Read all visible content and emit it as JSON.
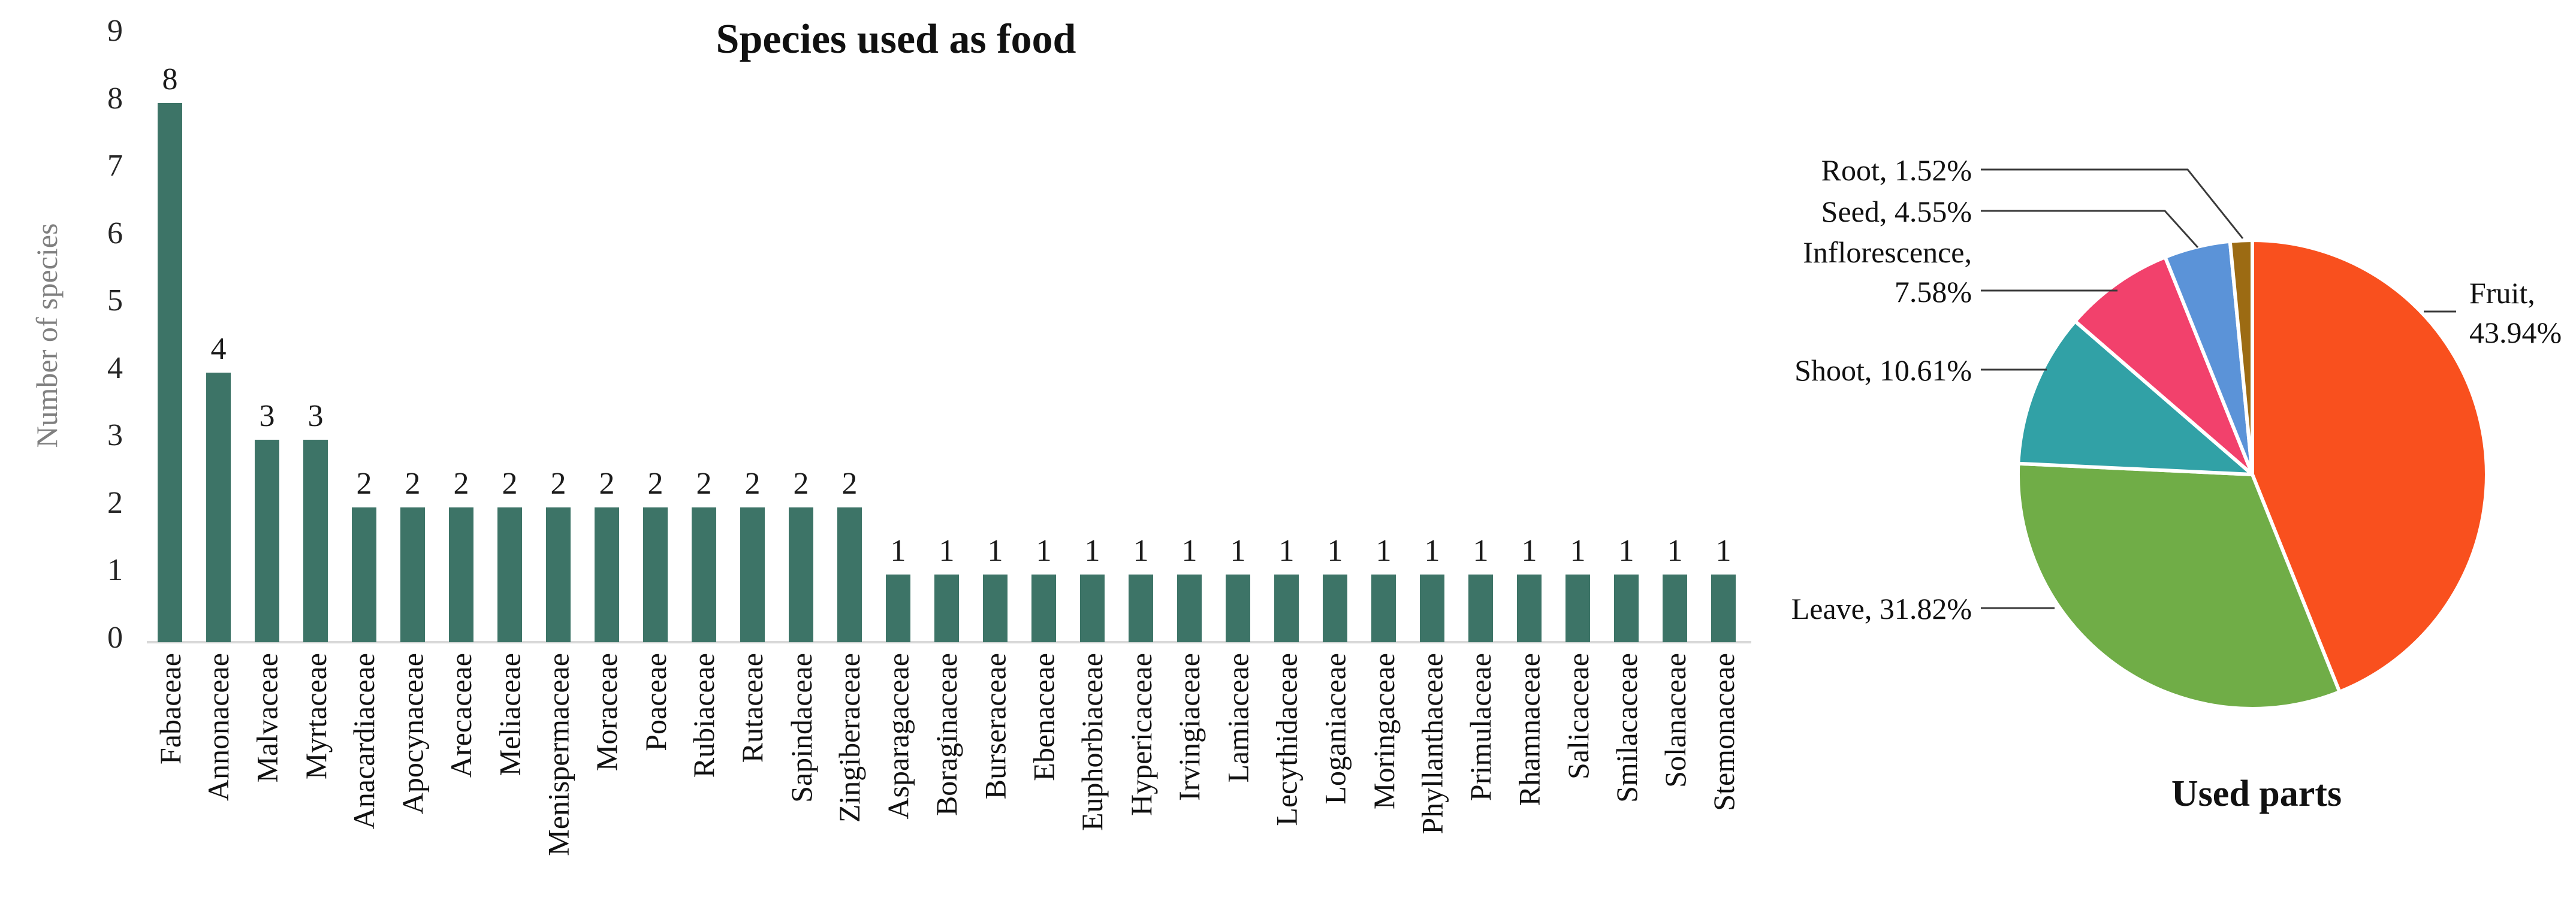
{
  "chart_data": [
    {
      "type": "bar",
      "title": "Species used as food",
      "xlabel": "",
      "ylabel": "Number of species",
      "ylim": [
        0,
        9
      ],
      "ytick_step": 1,
      "grid": false,
      "legend": null,
      "bar_color": "#3D7467",
      "value_labels_shown": true,
      "categories": [
        "Fabaceae",
        "Annonaceae",
        "Malvaceae",
        "Myrtaceae",
        "Anacardiaceae",
        "Apocynaceae",
        "Arecaceae",
        "Meliaceae",
        "Menispermaceae",
        "Moraceae",
        "Poaceae",
        "Rubiaceae",
        "Rutaceae",
        "Sapindaceae",
        "Zingiberaceae",
        "Asparagaceae",
        "Boraginaceae",
        "Burseraceae",
        "Ebenaceae",
        "Euphorbiaceae",
        "Hypericaceae",
        "Irvingiaceae",
        "Lamiaceae",
        "Lecythidaceae",
        "Loganiaceae",
        "Moringaceae",
        "Phyllanthaceae",
        "Primulaceae",
        "Rhamnaceae",
        "Salicaceae",
        "Smilacaceae",
        "Solanaceae",
        "Stemonaceae"
      ],
      "values": [
        8,
        4,
        3,
        3,
        2,
        2,
        2,
        2,
        2,
        2,
        2,
        2,
        2,
        2,
        2,
        1,
        1,
        1,
        1,
        1,
        1,
        1,
        1,
        1,
        1,
        1,
        1,
        1,
        1,
        1,
        1,
        1,
        1
      ]
    },
    {
      "type": "pie",
      "title": "Used parts",
      "start_angle": "12-oclock",
      "direction": "clockwise",
      "slice_border_color": "#ffffff",
      "series": [
        {
          "name": "Fruit",
          "value": 43.94,
          "color": "#F9501E",
          "callout": [
            "Fruit,",
            "43.94%"
          ]
        },
        {
          "name": "Leave",
          "value": 31.82,
          "color": "#70AD47",
          "callout": [
            "Leave, 31.82%"
          ]
        },
        {
          "name": "Shoot",
          "value": 10.61,
          "color": "#31A1A6",
          "callout": [
            "Shoot, 10.61%"
          ]
        },
        {
          "name": "Inflorescence",
          "value": 7.58,
          "color": "#F2416C",
          "callout": [
            "Inflorescence,",
            "7.58%"
          ]
        },
        {
          "name": "Seed",
          "value": 4.55,
          "color": "#5B93D8",
          "callout": [
            "Seed, 4.55%"
          ]
        },
        {
          "name": "Root",
          "value": 1.52,
          "color": "#9C6B13",
          "callout": [
            "Root, 1.52%"
          ]
        }
      ]
    }
  ]
}
